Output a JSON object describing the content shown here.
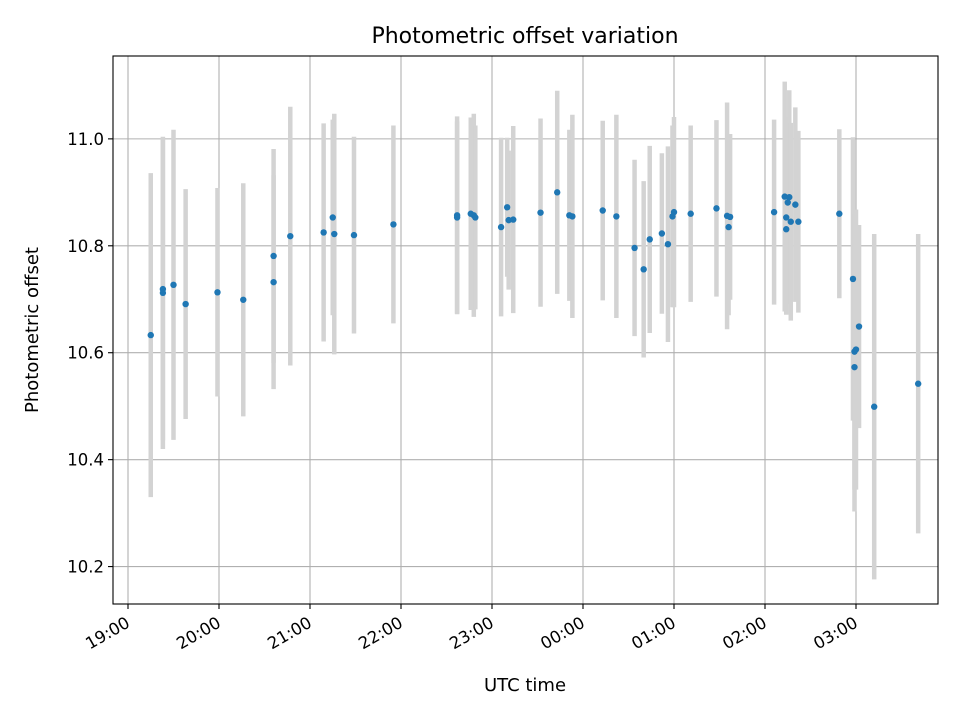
{
  "chart_data": {
    "type": "scatter",
    "title": "Photometric offset variation",
    "xlabel": "UTC time",
    "ylabel": "Photometric offset",
    "x_axis_kind": "time",
    "x_tick_labels": [
      "19:00",
      "20:00",
      "21:00",
      "22:00",
      "23:00",
      "00:00",
      "01:00",
      "02:00",
      "03:00"
    ],
    "y_tick_labels": [
      "10.2",
      "10.4",
      "10.6",
      "10.8",
      "11.0"
    ],
    "ylim": [
      10.13,
      11.155
    ],
    "grid": true,
    "colors": {
      "points": "#1f77b4",
      "errorbars": "#d3d3d3",
      "grid": "#b0b0b0"
    },
    "series": [
      {
        "x": [
          "19:15",
          "19:23",
          "19:23",
          "19:30",
          "19:38",
          "19:59",
          "20:16",
          "20:36",
          "20:36",
          "20:47",
          "21:09",
          "21:15",
          "21:16",
          "21:29",
          "21:55",
          "22:37",
          "22:37",
          "22:46",
          "22:48",
          "22:49",
          "23:06",
          "23:10",
          "23:11",
          "23:14",
          "23:32",
          "23:43",
          "23:51",
          "23:53",
          "00:13",
          "00:22",
          "00:34",
          "00:40",
          "00:44",
          "00:52",
          "00:56",
          "00:59",
          "01:00",
          "01:11",
          "01:28",
          "01:35",
          "01:36",
          "01:37",
          "02:06",
          "02:13",
          "02:14",
          "02:14",
          "02:15",
          "02:16",
          "02:17",
          "02:20",
          "02:22",
          "02:49",
          "02:58",
          "02:59",
          "02:59",
          "03:00",
          "03:02",
          "03:12",
          "03:41"
        ],
        "y": [
          10.633,
          10.719,
          10.712,
          10.727,
          10.691,
          10.713,
          10.699,
          10.781,
          10.732,
          10.818,
          10.825,
          10.853,
          10.822,
          10.82,
          10.84,
          10.857,
          10.853,
          10.86,
          10.857,
          10.853,
          10.835,
          10.872,
          10.848,
          10.849,
          10.862,
          10.9,
          10.857,
          10.855,
          10.866,
          10.855,
          10.796,
          10.756,
          10.812,
          10.823,
          10.803,
          10.855,
          10.863,
          10.86,
          10.87,
          10.856,
          10.835,
          10.854,
          10.863,
          10.892,
          10.831,
          10.853,
          10.881,
          10.891,
          10.845,
          10.877,
          10.845,
          10.86,
          10.738,
          10.573,
          10.602,
          10.606,
          10.649,
          10.499,
          10.542
        ],
        "err": [
          0.303,
          0.283,
          0.292,
          0.29,
          0.215,
          0.195,
          0.218,
          0.2,
          0.2,
          0.242,
          0.204,
          0.183,
          0.225,
          0.184,
          0.185,
          0.185,
          0.18,
          0.18,
          0.19,
          0.172,
          0.167,
          0.13,
          0.13,
          0.175,
          0.176,
          0.19,
          0.16,
          0.19,
          0.168,
          0.19,
          0.165,
          0.165,
          0.175,
          0.15,
          0.183,
          0.17,
          0.178,
          0.165,
          0.165,
          0.212,
          0.165,
          0.155,
          0.173,
          0.215,
          0.155,
          0.182,
          0.16,
          0.2,
          0.185,
          0.182,
          0.17,
          0.158,
          0.265,
          0.27,
          0.258,
          0.262,
          0.19,
          0.323,
          0.28
        ]
      }
    ]
  }
}
